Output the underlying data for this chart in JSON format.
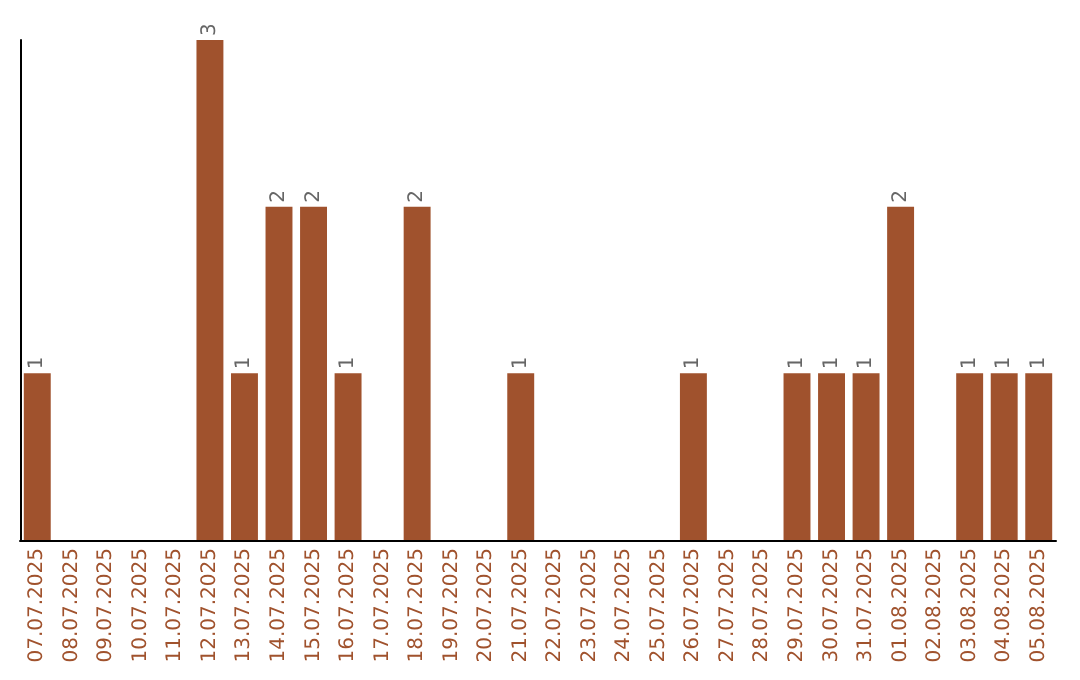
{
  "chart_data": {
    "type": "bar",
    "color": "#a0522d",
    "categories": [
      "07.07.2025",
      "08.07.2025",
      "09.07.2025",
      "10.07.2025",
      "11.07.2025",
      "12.07.2025",
      "13.07.2025",
      "14.07.2025",
      "15.07.2025",
      "16.07.2025",
      "17.07.2025",
      "18.07.2025",
      "19.07.2025",
      "20.07.2025",
      "21.07.2025",
      "22.07.2025",
      "23.07.2025",
      "24.07.2025",
      "25.07.2025",
      "26.07.2025",
      "27.07.2025",
      "28.07.2025",
      "29.07.2025",
      "30.07.2025",
      "31.07.2025",
      "01.08.2025",
      "02.08.2025",
      "03.08.2025",
      "04.08.2025",
      "05.08.2025"
    ],
    "values": [
      1,
      0,
      0,
      0,
      0,
      3,
      1,
      2,
      2,
      1,
      0,
      2,
      0,
      0,
      1,
      0,
      0,
      0,
      0,
      1,
      0,
      0,
      1,
      1,
      1,
      2,
      0,
      1,
      1,
      1
    ],
    "value_labels": [
      "1",
      null,
      null,
      null,
      null,
      "3",
      "1",
      "2",
      "2",
      "1",
      null,
      "2",
      null,
      null,
      "1",
      null,
      null,
      null,
      null,
      "1",
      null,
      null,
      "1",
      "1",
      "1",
      "2",
      null,
      "1",
      "1",
      "1"
    ]
  }
}
